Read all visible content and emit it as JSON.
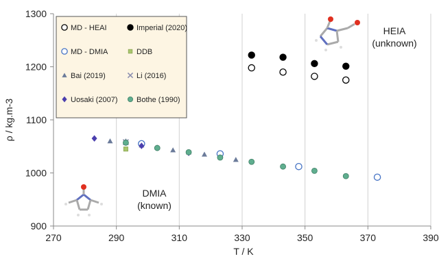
{
  "chart_data": {
    "type": "scatter",
    "title": "",
    "xlabel": "T / K",
    "ylabel": "ρ / kg.m-3",
    "xlim": [
      270,
      390
    ],
    "ylim": [
      900,
      1300
    ],
    "x_ticks": [
      "270",
      "290",
      "310",
      "330",
      "350",
      "370",
      "390"
    ],
    "y_ticks": [
      "900",
      "1000",
      "1100",
      "1200",
      "1300"
    ],
    "x_tick_values": [
      270,
      290,
      310,
      330,
      350,
      370,
      390
    ],
    "y_tick_values": [
      900,
      1000,
      1100,
      1200,
      1300
    ],
    "grid": "vertical",
    "legend_position": "top-left",
    "series": [
      {
        "name": "MD - HEAI",
        "marker": "open-circle",
        "color": "#000000",
        "points": [
          [
            333,
            1198
          ],
          [
            343,
            1190
          ],
          [
            353,
            1182
          ],
          [
            363,
            1175
          ]
        ]
      },
      {
        "name": "Imperial (2020)",
        "marker": "filled-circle",
        "color": "#000000",
        "points": [
          [
            333,
            1222
          ],
          [
            343,
            1218
          ],
          [
            353,
            1206
          ],
          [
            363,
            1201
          ]
        ]
      },
      {
        "name": "MD - DMIA",
        "marker": "open-circle",
        "color": "#4472c4",
        "points": [
          [
            298,
            1055
          ],
          [
            323,
            1036
          ],
          [
            348,
            1012
          ],
          [
            373,
            992
          ]
        ]
      },
      {
        "name": "DDB",
        "marker": "square",
        "color": "#a9c66e",
        "points": [
          [
            293,
            1045
          ]
        ]
      },
      {
        "name": "Bai (2019)",
        "marker": "triangle",
        "color": "#6b7b9a",
        "points": [
          [
            288,
            1060
          ],
          [
            293,
            1060
          ],
          [
            298,
            1052
          ],
          [
            303,
            1048
          ],
          [
            308,
            1043
          ],
          [
            313,
            1039
          ],
          [
            318,
            1035
          ],
          [
            323,
            1030
          ],
          [
            328,
            1025
          ]
        ]
      },
      {
        "name": "Li (2016)",
        "marker": "x",
        "color": "#8c8fb0",
        "points": [
          [
            293,
            1058
          ]
        ]
      },
      {
        "name": "Uosaki (2007)",
        "marker": "diamond",
        "color": "#4b3fae",
        "points": [
          [
            283,
            1065
          ],
          [
            298,
            1051
          ],
          [
            313,
            1038
          ]
        ]
      },
      {
        "name": "Bothe (1990)",
        "marker": "filled-circle",
        "color": "#5fae8f",
        "points": [
          [
            293,
            1057
          ],
          [
            303,
            1047
          ],
          [
            313,
            1039
          ],
          [
            323,
            1029
          ],
          [
            333,
            1021
          ],
          [
            343,
            1012
          ],
          [
            353,
            1004
          ],
          [
            363,
            994
          ]
        ]
      }
    ],
    "annotations": [
      {
        "id": "heia",
        "line1": "HEIA",
        "line2": "(unknown)"
      },
      {
        "id": "dmia",
        "line1": "DMIA",
        "line2": "(known)"
      }
    ]
  }
}
